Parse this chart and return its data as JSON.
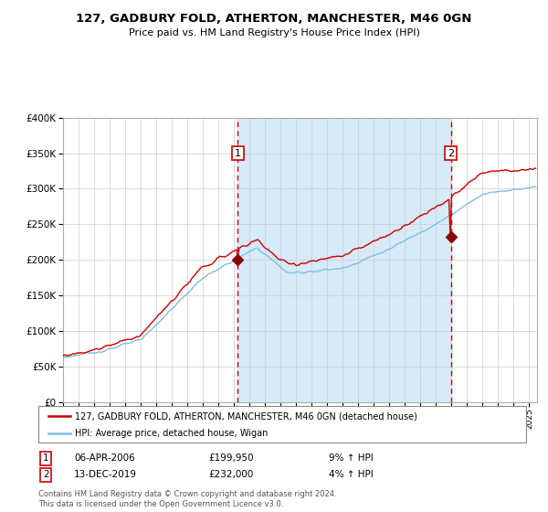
{
  "title": "127, GADBURY FOLD, ATHERTON, MANCHESTER, M46 0GN",
  "subtitle": "Price paid vs. HM Land Registry's House Price Index (HPI)",
  "legend_line1": "127, GADBURY FOLD, ATHERTON, MANCHESTER, M46 0GN (detached house)",
  "legend_line2": "HPI: Average price, detached house, Wigan",
  "annotation1": {
    "label": "1",
    "date": "06-APR-2006",
    "price": "£199,950",
    "pct": "9% ↑ HPI",
    "x_year": 2006.25
  },
  "annotation2": {
    "label": "2",
    "date": "13-DEC-2019",
    "price": "£232,000",
    "pct": "4% ↑ HPI",
    "x_year": 2019.95
  },
  "hpi_color": "#7fbfdf",
  "price_color": "#cc0000",
  "dot_color": "#8b0000",
  "vline_color": "#cc0000",
  "bg_shaded_color": "#d6eaf8",
  "box_color": "#cc0000",
  "footer": "Contains HM Land Registry data © Crown copyright and database right 2024.\nThis data is licensed under the Open Government Licence v3.0.",
  "ylim": [
    0,
    400000
  ],
  "xlim_start": 1995.0,
  "xlim_end": 2025.5
}
